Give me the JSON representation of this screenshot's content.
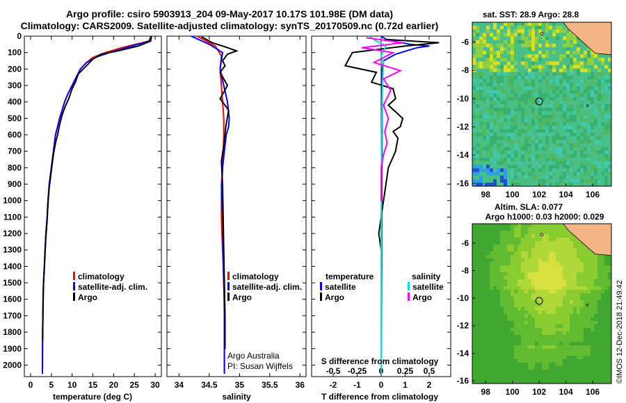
{
  "title": {
    "line1": "Argo profile: csiro 5903913_204 09-May-2017 10.17S 101.98E (DM data)",
    "line2": "Climatology: CARS2009. Satellite-adjusted climatology: synTS_20170509.nc (0.72d earlier)"
  },
  "colors": {
    "climatology": "#ff0000",
    "satellite": "#0000ff",
    "argo": "#000000",
    "sat_salinity": "#00e0e0",
    "argo_salinity": "#ff00ff",
    "land": "#f4b483"
  },
  "yaxis": {
    "ticks": [
      0,
      100,
      200,
      300,
      400,
      500,
      600,
      700,
      800,
      900,
      1000,
      1100,
      1200,
      1300,
      1400,
      1500,
      1600,
      1700,
      1800,
      1900,
      2000
    ],
    "ylim": [
      0,
      2070
    ]
  },
  "chart_data": [
    {
      "type": "line",
      "xlabel": "temperature (deg C)",
      "xlim": [
        -1.5,
        31.5
      ],
      "xticks": [
        0,
        5,
        10,
        15,
        20,
        25,
        30
      ],
      "ylim": [
        0,
        2070
      ],
      "legend": {
        "position": "lower-center",
        "items": [
          "climatology",
          "satellite-adj. clim.",
          "Argo"
        ]
      },
      "series": [
        {
          "name": "climatology",
          "color": "#ff0000",
          "x": [
            29,
            28.5,
            22,
            18,
            15,
            13.5,
            12,
            11,
            10,
            9,
            8.2,
            7.6,
            7,
            6.5,
            6,
            5.5,
            5,
            4.5,
            4.2,
            4,
            3.7,
            3.5,
            3.3,
            3.1,
            3,
            2.9,
            2.85
          ],
          "y": [
            0,
            30,
            70,
            100,
            130,
            160,
            200,
            250,
            300,
            350,
            400,
            450,
            500,
            550,
            600,
            700,
            800,
            900,
            1000,
            1100,
            1200,
            1300,
            1400,
            1500,
            1600,
            1800,
            2050
          ]
        },
        {
          "name": "satellite-adj. clim.",
          "color": "#0000ff",
          "x": [
            29,
            28.7,
            23,
            19,
            15.5,
            13.5,
            12,
            11,
            10,
            9,
            8.2,
            7.6,
            7,
            6.5,
            6,
            5.5,
            5,
            4.5,
            4.2,
            4,
            3.7,
            3.5,
            3.3,
            3.1,
            3,
            2.9,
            2.85
          ],
          "y": [
            0,
            30,
            70,
            100,
            130,
            160,
            200,
            250,
            300,
            350,
            400,
            450,
            500,
            550,
            600,
            700,
            800,
            900,
            1000,
            1100,
            1200,
            1300,
            1400,
            1500,
            1600,
            1800,
            2050
          ]
        },
        {
          "name": "Argo",
          "color": "#000000",
          "x": [
            29.1,
            28.9,
            26,
            21,
            17,
            15,
            13.5,
            11.5,
            10.8,
            10,
            9.2,
            8.3,
            7.6,
            7,
            6.5,
            6,
            5.5,
            5,
            4.5,
            4.2,
            4,
            3.7,
            3.5,
            3.3,
            3.1,
            3,
            2.9
          ],
          "y": [
            5,
            30,
            60,
            90,
            110,
            140,
            180,
            230,
            280,
            320,
            380,
            430,
            480,
            540,
            600,
            650,
            720,
            820,
            920,
            1020,
            1120,
            1220,
            1320,
            1420,
            1520,
            1650,
            1850
          ]
        }
      ]
    },
    {
      "type": "line",
      "xlabel": "salinity",
      "xlim": [
        33.8,
        36.1
      ],
      "xticks": [
        34,
        34.5,
        35,
        35.5,
        36
      ],
      "ylim": [
        0,
        2070
      ],
      "legend": {
        "position": "lower-center",
        "items": [
          "climatology",
          "satellite-adj. clim.",
          "Argo"
        ]
      },
      "annotations": [
        "Argo Australia",
        "PI: Susan Wijffels"
      ],
      "series": [
        {
          "name": "climatology",
          "color": "#ff0000",
          "x": [
            34.3,
            34.6,
            34.7,
            34.68,
            34.7,
            34.72,
            34.74,
            34.74,
            34.73,
            34.72,
            34.7,
            34.7,
            34.7,
            34.71,
            34.72,
            34.73,
            34.74,
            34.75,
            34.75,
            34.75
          ],
          "y": [
            0,
            60,
            120,
            200,
            300,
            400,
            500,
            600,
            700,
            800,
            900,
            1000,
            1100,
            1200,
            1300,
            1400,
            1500,
            1700,
            1900,
            2050
          ]
        },
        {
          "name": "satellite-adj. clim.",
          "color": "#0000ff",
          "x": [
            34.2,
            34.5,
            34.72,
            34.68,
            34.74,
            34.8,
            34.83,
            34.82,
            34.78,
            34.75,
            34.72,
            34.71,
            34.71,
            34.72,
            34.73,
            34.74,
            34.75,
            34.75,
            34.75,
            34.75
          ],
          "y": [
            0,
            50,
            100,
            200,
            300,
            400,
            500,
            550,
            600,
            700,
            800,
            900,
            1000,
            1100,
            1300,
            1500,
            1600,
            1700,
            1900,
            2050
          ]
        },
        {
          "name": "Argo",
          "color": "#000000",
          "x": [
            34.38,
            34.55,
            34.8,
            34.95,
            34.8,
            34.72,
            34.76,
            34.68,
            34.8,
            34.68,
            34.82,
            34.77,
            34.75,
            34.7,
            34.72,
            34.73,
            34.74,
            34.75,
            34.76,
            34.76
          ],
          "y": [
            5,
            40,
            70,
            90,
            110,
            150,
            180,
            220,
            300,
            380,
            450,
            560,
            640,
            760,
            900,
            1100,
            1300,
            1500,
            1700,
            1900
          ]
        }
      ]
    },
    {
      "type": "line",
      "xlabel": "T difference from climatology",
      "xlabel2": "S difference from climatology",
      "xlim": [
        -2.9,
        2.9
      ],
      "xticks": [
        -2,
        -1,
        0,
        1,
        2
      ],
      "xticks2_labels": [
        "-0.5",
        "-0.25",
        "0",
        "0.25",
        "0.5"
      ],
      "ylim": [
        0,
        2070
      ],
      "legend": {
        "position": "lower-center",
        "headers": [
          "temperature",
          "salinity"
        ],
        "items": [
          "satellite",
          "Argo",
          "satellite",
          "Argo"
        ]
      },
      "series": [
        {
          "name": "satellite",
          "color": "#0000ff",
          "x": [
            0,
            0.2,
            1.2,
            2.0,
            1.5,
            0.6,
            0.1,
            0.05,
            0
          ],
          "y": [
            0,
            20,
            50,
            60,
            70,
            110,
            150,
            200,
            2050
          ]
        },
        {
          "name": "Argo",
          "color": "#000000",
          "x": [
            0.2,
            2.4,
            1.0,
            -1.2,
            -1.5,
            -0.2,
            -0.4,
            0.5,
            0.6,
            0.3,
            0.6,
            0.9,
            0.8,
            0.5,
            0.7,
            0.6,
            0.3,
            0.2,
            0.1,
            0,
            -0.1,
            0,
            0.02
          ],
          "y": [
            20,
            40,
            60,
            100,
            180,
            220,
            280,
            320,
            380,
            420,
            460,
            500,
            550,
            580,
            620,
            700,
            800,
            900,
            1000,
            1100,
            1200,
            1300,
            1400
          ]
        },
        {
          "name": "satellite",
          "color": "#00e0e0",
          "x": [
            -0.5,
            -0.2,
            0.2,
            0.0,
            0.1,
            0.05,
            0.02,
            0,
            0
          ],
          "y": [
            0,
            30,
            60,
            120,
            160,
            300,
            600,
            1200,
            2050
          ]
        },
        {
          "name": "Argo",
          "color": "#ff00ff",
          "x": [
            -0.6,
            0.9,
            -0.8,
            0.5,
            -0.3,
            0.8,
            0.1,
            0.4,
            0.1,
            0.3,
            0.15,
            0.25,
            0.1,
            0,
            0
          ],
          "y": [
            10,
            40,
            70,
            100,
            160,
            210,
            260,
            330,
            420,
            500,
            580,
            650,
            720,
            800,
            1000
          ]
        }
      ]
    }
  ],
  "maps": [
    {
      "title": "sat. SST: 28.9 Argo: 28.8",
      "subtitle": "",
      "xlim": [
        97,
        107.4
      ],
      "ylim": [
        -16.2,
        -4.6
      ],
      "xticks": [
        98,
        100,
        102,
        104,
        106
      ],
      "yticks": [
        -6,
        -8,
        -10,
        -12,
        -14,
        -16
      ],
      "marker": {
        "lon": 102,
        "lat": -10.2
      }
    },
    {
      "title": "Altim. SLA: 0.077",
      "subtitle": "Argo h1000: 0.03 h2000: 0.029",
      "xlim": [
        97,
        107.4
      ],
      "ylim": [
        -16.2,
        -4.6
      ],
      "xticks": [
        98,
        100,
        102,
        104,
        106
      ],
      "yticks": [
        -6,
        -8,
        -10,
        -12,
        -14,
        -16
      ],
      "marker": {
        "lon": 102,
        "lat": -10.2
      }
    }
  ],
  "credit": "©IMOS 12-Dec-2018 21:49:42"
}
